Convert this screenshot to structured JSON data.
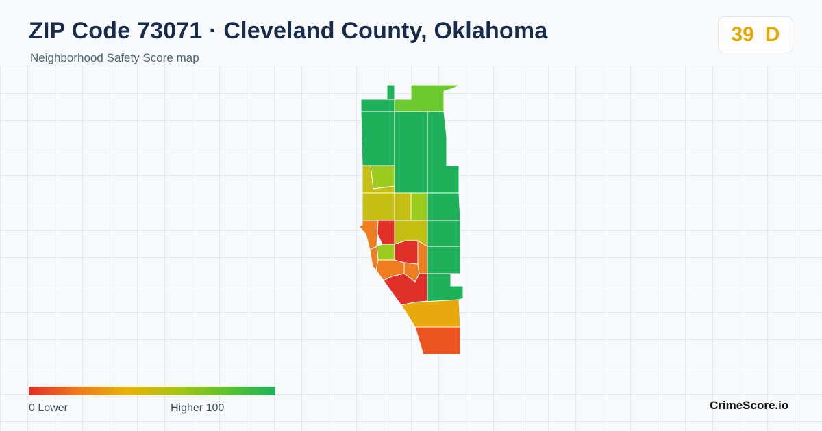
{
  "header": {
    "title": "ZIP Code 73071 · Cleveland County, Oklahoma",
    "subtitle": "Neighborhood Safety Score map"
  },
  "score": {
    "value": "39",
    "grade": "D",
    "color": "#e6a800"
  },
  "legend": {
    "min_label": "0  Lower",
    "max_label": "Higher  100",
    "min_value": 0,
    "max_value": 100,
    "colors": [
      "#e03027",
      "#ee7a1f",
      "#e8b20a",
      "#a9c414",
      "#5cc22e",
      "#1fb15a"
    ]
  },
  "brand": {
    "name": "CrimeScore.io"
  },
  "map": {
    "tract_colors": {
      "high": "#1fb15a",
      "lime": "#6cc930",
      "green_yellow": "#9bcb1e",
      "olive_yellow": "#c4bf12",
      "amber": "#e8a90e",
      "orange": "#ee7d22",
      "red_orange": "#ec5422",
      "red": "#e0302a"
    }
  }
}
